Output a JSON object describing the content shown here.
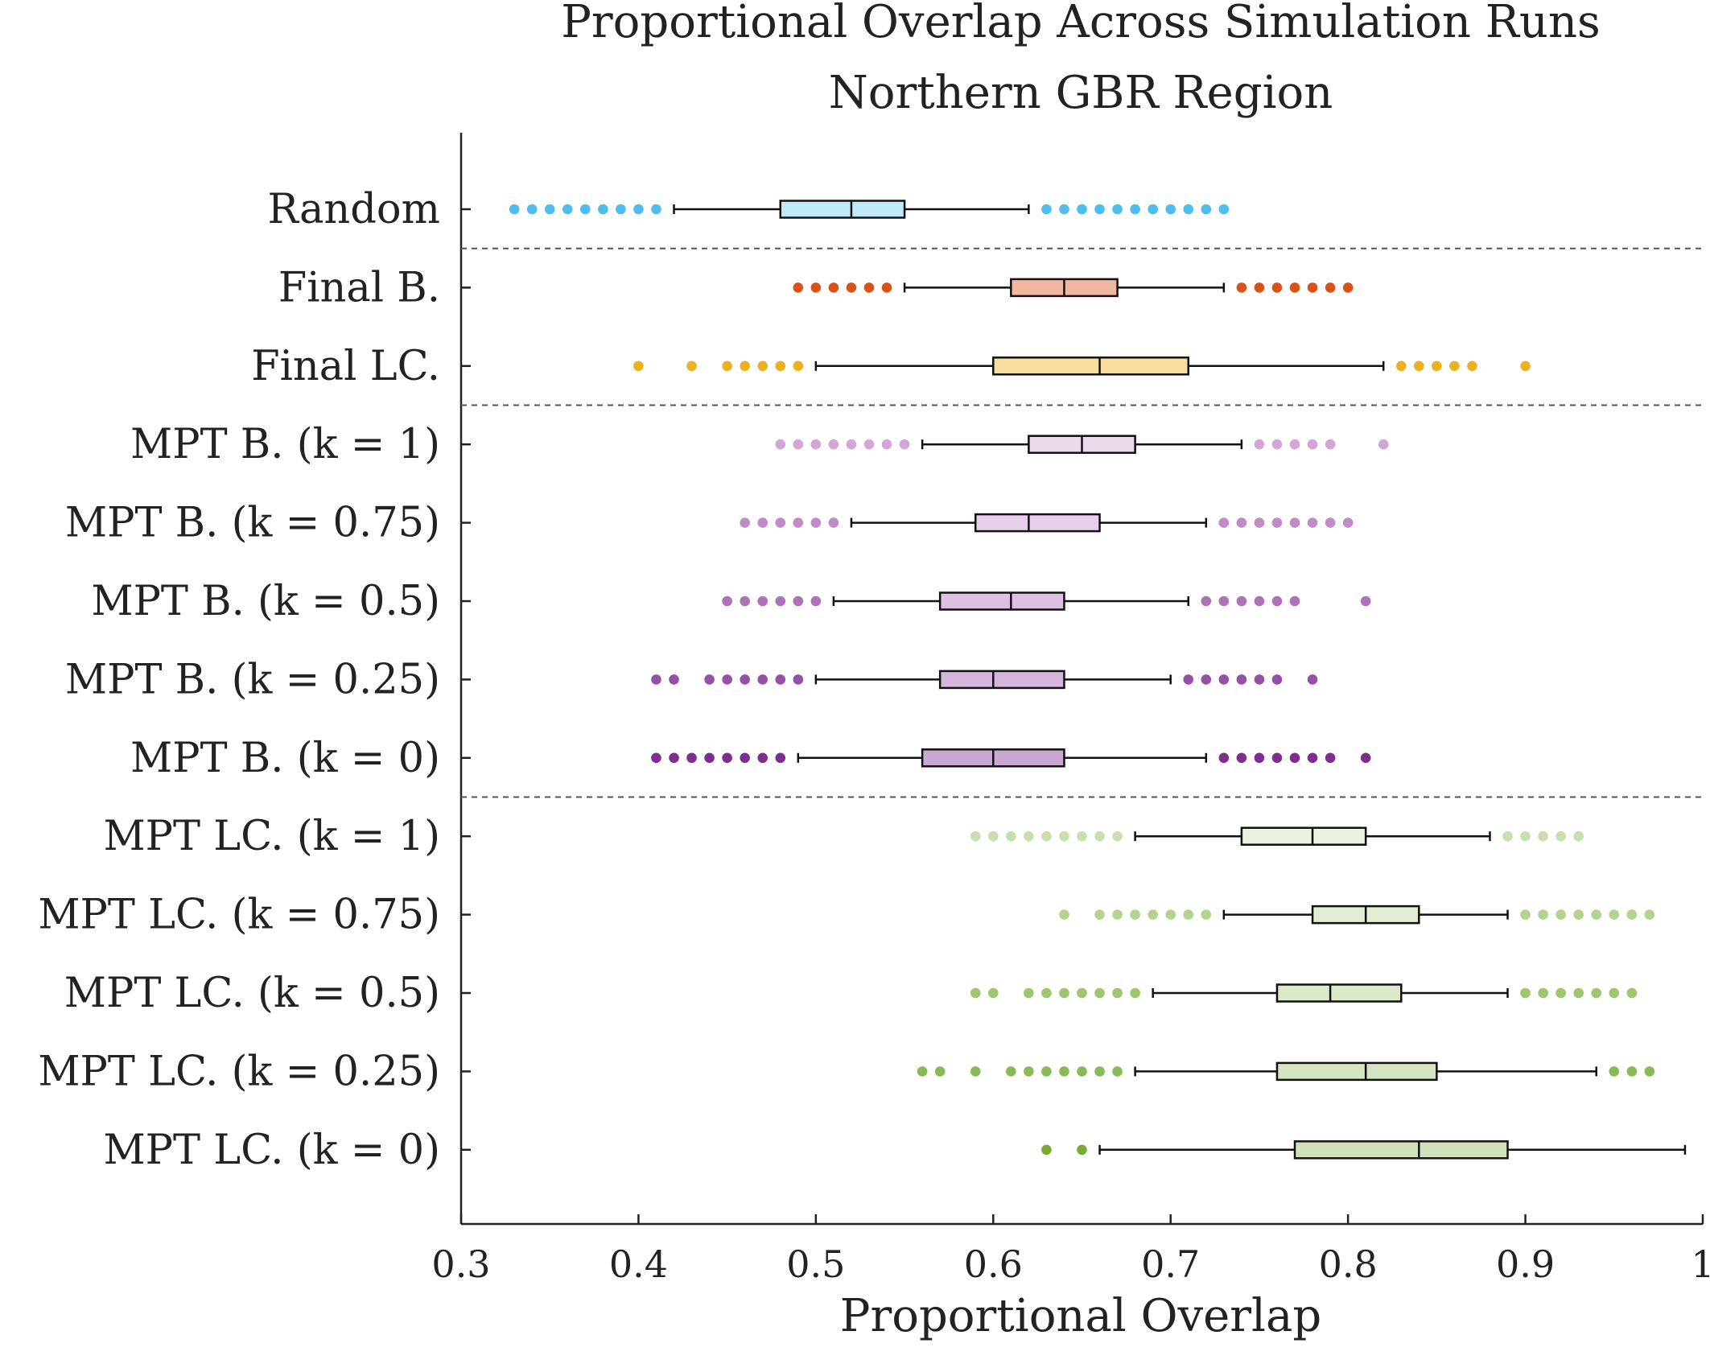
{
  "chart_data": {
    "type": "boxplot",
    "orientation": "horizontal",
    "title": "Proportional Overlap Across Simulation Runs",
    "subtitle": "Northern GBR Region",
    "xlabel": "Proportional Overlap",
    "xlim": [
      0.3,
      1
    ],
    "xticks": [
      "0.3",
      "0.4",
      "0.5",
      "0.6",
      "0.7",
      "0.8",
      "0.9",
      "1"
    ],
    "grid": false,
    "separators_after": [
      "Random",
      "Final LC.",
      "MPT B. (k = 0)"
    ],
    "groups": [
      {
        "label": "Random",
        "color": "#4DBEEE",
        "fill": "#BFE8F8",
        "q1": 0.48,
        "median": 0.52,
        "q3": 0.55,
        "whisker_low": 0.42,
        "whisker_high": 0.62,
        "outliers": [
          0.33,
          0.34,
          0.35,
          0.36,
          0.37,
          0.38,
          0.39,
          0.4,
          0.41,
          0.63,
          0.64,
          0.65,
          0.66,
          0.67,
          0.68,
          0.69,
          0.7,
          0.71,
          0.72,
          0.73
        ]
      },
      {
        "label": "Final B.",
        "color": "#D95319",
        "fill": "#F0B8A0",
        "q1": 0.61,
        "median": 0.64,
        "q3": 0.67,
        "whisker_low": 0.55,
        "whisker_high": 0.73,
        "outliers": [
          0.49,
          0.5,
          0.51,
          0.52,
          0.53,
          0.54,
          0.74,
          0.75,
          0.76,
          0.77,
          0.78,
          0.79,
          0.8
        ]
      },
      {
        "label": "Final LC.",
        "color": "#EDB120",
        "fill": "#F8DFA0",
        "q1": 0.6,
        "median": 0.66,
        "q3": 0.71,
        "whisker_low": 0.5,
        "whisker_high": 0.82,
        "outliers": [
          0.4,
          0.43,
          0.45,
          0.46,
          0.47,
          0.48,
          0.49,
          0.83,
          0.84,
          0.85,
          0.86,
          0.87,
          0.9
        ]
      },
      {
        "label": "MPT B. (k = 1)",
        "color": "#D4A6D8",
        "fill": "#EDD9EE",
        "q1": 0.62,
        "median": 0.65,
        "q3": 0.68,
        "whisker_low": 0.56,
        "whisker_high": 0.74,
        "outliers": [
          0.48,
          0.49,
          0.5,
          0.51,
          0.52,
          0.53,
          0.54,
          0.55,
          0.75,
          0.76,
          0.77,
          0.78,
          0.79,
          0.82
        ]
      },
      {
        "label": "MPT B. (k = 0.75)",
        "color": "#C18BC8",
        "fill": "#E6D0E9",
        "q1": 0.59,
        "median": 0.62,
        "q3": 0.66,
        "whisker_low": 0.52,
        "whisker_high": 0.72,
        "outliers": [
          0.46,
          0.47,
          0.48,
          0.49,
          0.5,
          0.51,
          0.73,
          0.74,
          0.75,
          0.76,
          0.77,
          0.78,
          0.79,
          0.8
        ]
      },
      {
        "label": "MPT B. (k = 0.5)",
        "color": "#AE72B8",
        "fill": "#DCC2E0",
        "q1": 0.57,
        "median": 0.61,
        "q3": 0.64,
        "whisker_low": 0.51,
        "whisker_high": 0.71,
        "outliers": [
          0.45,
          0.46,
          0.47,
          0.48,
          0.49,
          0.5,
          0.72,
          0.73,
          0.74,
          0.75,
          0.76,
          0.77,
          0.81
        ]
      },
      {
        "label": "MPT B. (k = 0.25)",
        "color": "#9651A6",
        "fill": "#D3B6DA",
        "q1": 0.57,
        "median": 0.6,
        "q3": 0.64,
        "whisker_low": 0.5,
        "whisker_high": 0.7,
        "outliers": [
          0.41,
          0.42,
          0.44,
          0.45,
          0.46,
          0.47,
          0.48,
          0.49,
          0.71,
          0.72,
          0.73,
          0.74,
          0.75,
          0.76,
          0.78
        ]
      },
      {
        "label": "MPT B. (k = 0)",
        "color": "#7E2F8E",
        "fill": "#C9A9D2",
        "q1": 0.56,
        "median": 0.6,
        "q3": 0.64,
        "whisker_low": 0.49,
        "whisker_high": 0.72,
        "outliers": [
          0.41,
          0.42,
          0.43,
          0.44,
          0.45,
          0.46,
          0.47,
          0.48,
          0.73,
          0.74,
          0.75,
          0.76,
          0.77,
          0.78,
          0.79,
          0.81
        ]
      },
      {
        "label": "MPT LC. (k = 1)",
        "color": "#C8E0AE",
        "fill": "#EAF3DF",
        "q1": 0.74,
        "median": 0.78,
        "q3": 0.81,
        "whisker_low": 0.68,
        "whisker_high": 0.88,
        "outliers": [
          0.59,
          0.6,
          0.61,
          0.62,
          0.63,
          0.64,
          0.65,
          0.66,
          0.67,
          0.89,
          0.9,
          0.91,
          0.92,
          0.93
        ]
      },
      {
        "label": "MPT LC. (k = 0.75)",
        "color": "#B2D48E",
        "fill": "#E2EED3",
        "q1": 0.78,
        "median": 0.81,
        "q3": 0.84,
        "whisker_low": 0.73,
        "whisker_high": 0.89,
        "outliers": [
          0.64,
          0.66,
          0.67,
          0.68,
          0.69,
          0.7,
          0.71,
          0.72,
          0.9,
          0.91,
          0.92,
          0.93,
          0.94,
          0.95,
          0.96,
          0.97
        ]
      },
      {
        "label": "MPT LC. (k = 0.5)",
        "color": "#9CC76F",
        "fill": "#DAEAC9",
        "q1": 0.76,
        "median": 0.79,
        "q3": 0.83,
        "whisker_low": 0.69,
        "whisker_high": 0.89,
        "outliers": [
          0.59,
          0.6,
          0.62,
          0.63,
          0.64,
          0.65,
          0.66,
          0.67,
          0.68,
          0.9,
          0.91,
          0.92,
          0.93,
          0.94,
          0.95,
          0.96
        ]
      },
      {
        "label": "MPT LC. (k = 0.25)",
        "color": "#88BB55",
        "fill": "#D4E6C1",
        "q1": 0.76,
        "median": 0.81,
        "q3": 0.85,
        "whisker_low": 0.68,
        "whisker_high": 0.94,
        "outliers": [
          0.56,
          0.57,
          0.59,
          0.61,
          0.62,
          0.63,
          0.64,
          0.65,
          0.66,
          0.67,
          0.95,
          0.96,
          0.97
        ]
      },
      {
        "label": "MPT LC. (k = 0)",
        "color": "#77AC30",
        "fill": "#CFE2BA",
        "q1": 0.77,
        "median": 0.84,
        "q3": 0.89,
        "whisker_low": 0.66,
        "whisker_high": 0.99,
        "outliers": [
          0.63,
          0.65
        ]
      }
    ]
  }
}
